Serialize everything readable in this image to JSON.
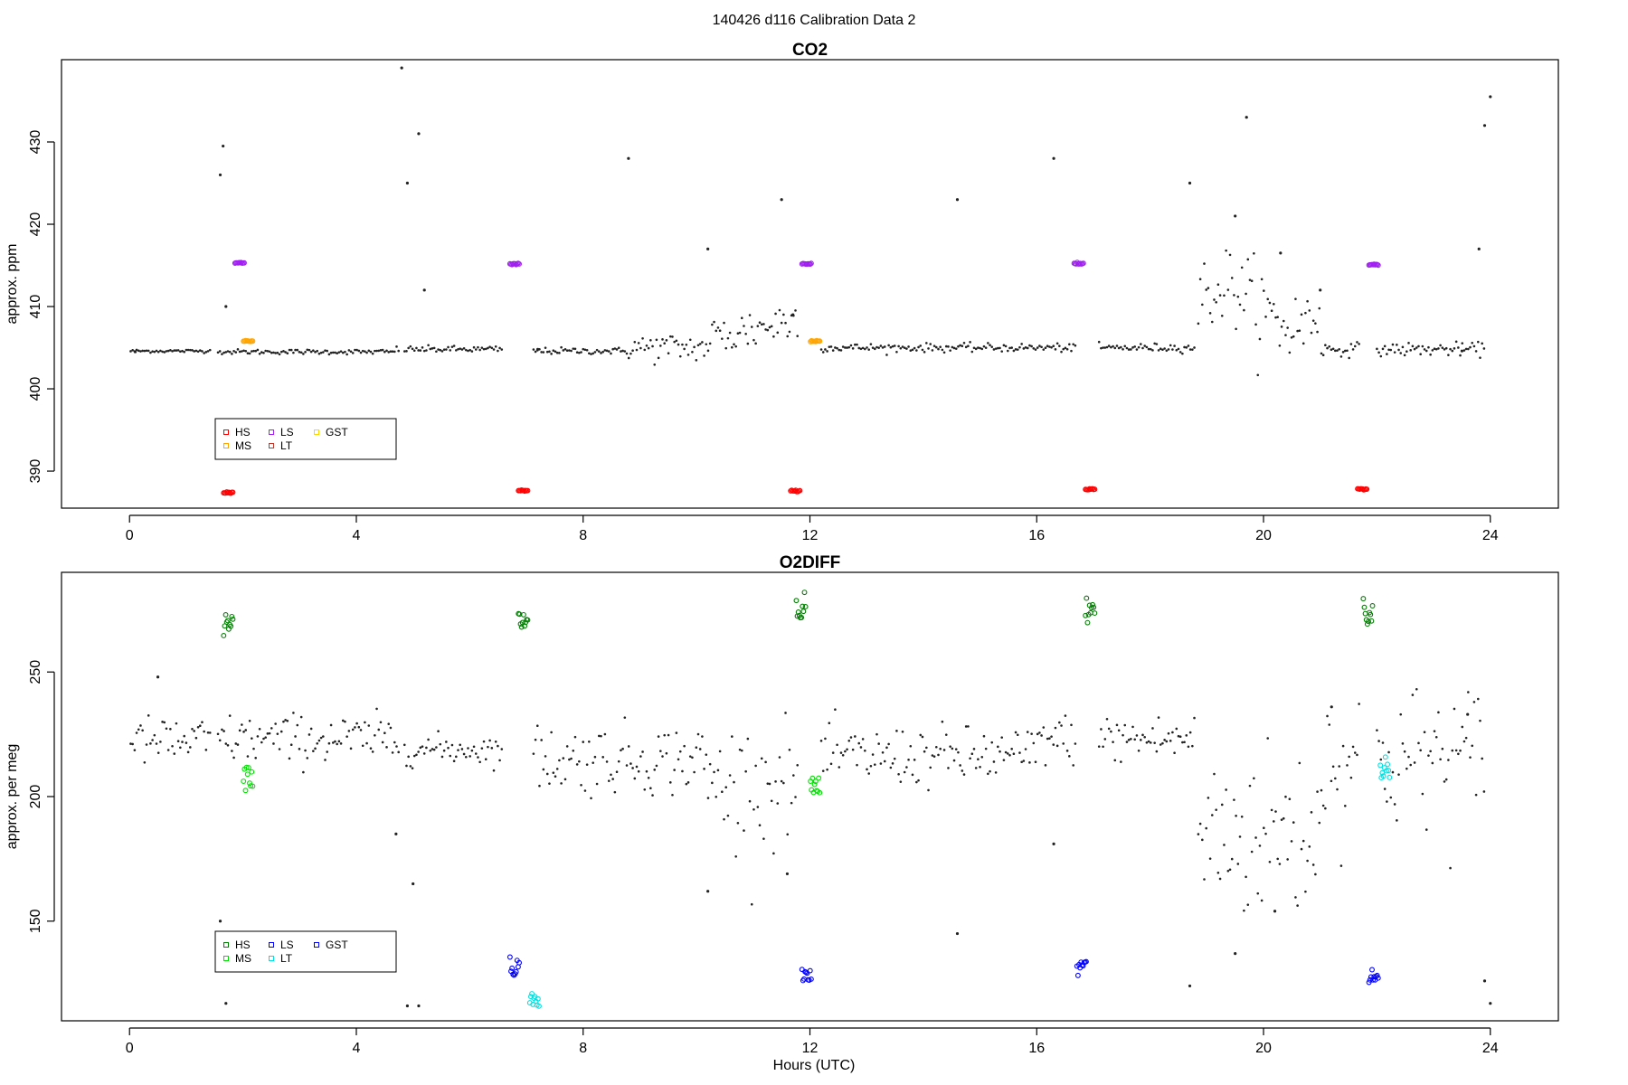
{
  "figure": {
    "title": "140426   d116   Calibration Data 2",
    "xlabel": "Hours (UTC)"
  },
  "chart_data": [
    {
      "type": "scatter",
      "title": "CO2",
      "ylabel": "approx. ppm",
      "xlim": [
        -1.2,
        25.2
      ],
      "ylim": [
        385.5,
        440
      ],
      "xticks": [
        0,
        4,
        8,
        12,
        16,
        20,
        24
      ],
      "yticks": [
        390,
        400,
        410,
        420,
        430
      ],
      "legend": {
        "position": "bottom-left",
        "entries": [
          {
            "name": "HS",
            "color": "#ff0000"
          },
          {
            "name": "MS",
            "color": "#ffa500"
          },
          {
            "name": "LS",
            "color": "#a020f0"
          },
          {
            "name": "LT",
            "color": "#c0392b"
          },
          {
            "name": "GST",
            "color": "#ffd700"
          }
        ]
      },
      "calibrations": [
        {
          "name": "HS",
          "color": "#ff0000",
          "x": [
            1.75,
            6.95,
            11.75,
            16.95,
            21.75
          ],
          "y": [
            387.4,
            387.6,
            387.6,
            387.8,
            387.8
          ]
        },
        {
          "name": "MS",
          "color": "#ffa500",
          "x": [
            2.1,
            12.1
          ],
          "y": [
            405.8,
            405.8
          ]
        },
        {
          "name": "LS",
          "color": "#a020f0",
          "x": [
            1.95,
            6.8,
            11.95,
            16.75,
            21.95
          ],
          "y": [
            415.3,
            415.2,
            415.2,
            415.2,
            415.1
          ]
        }
      ],
      "key_points": {
        "x": [
          0.1,
          1.6,
          1.65,
          1.7,
          4.8,
          4.9,
          5.1,
          5.2,
          7.2,
          8.8,
          10.2,
          11.5,
          11.7,
          14.6,
          16.3,
          18.7,
          19.5,
          19.7,
          20.3,
          21,
          23.5,
          23.8,
          23.9,
          24
        ],
        "y": [
          404.5,
          426,
          429.5,
          410,
          439,
          425,
          431,
          412,
          404.8,
          428,
          417,
          423,
          409,
          423,
          428,
          425,
          421,
          433,
          416.5,
          412,
          404.6,
          417,
          432,
          435.5
        ]
      }
    },
    {
      "type": "scatter",
      "title": "O2DIFF",
      "ylabel": "approx. per meg",
      "xlim": [
        -1.2,
        25.2
      ],
      "ylim": [
        110,
        290
      ],
      "xticks": [
        0,
        4,
        8,
        12,
        16,
        20,
        24
      ],
      "yticks": [
        150,
        200,
        250
      ],
      "legend": {
        "position": "bottom-left",
        "entries": [
          {
            "name": "HS",
            "color": "#008000"
          },
          {
            "name": "MS",
            "color": "#00e000"
          },
          {
            "name": "LS",
            "color": "#0000ff"
          },
          {
            "name": "LT",
            "color": "#00e0e0"
          },
          {
            "name": "GST",
            "color": "#0000ff"
          }
        ]
      },
      "calibrations": [
        {
          "name": "HS",
          "color": "#008000",
          "x": [
            1.75,
            6.95,
            11.85,
            16.95,
            21.85
          ],
          "y": [
            270,
            271,
            276,
            276,
            274
          ]
        },
        {
          "name": "MS",
          "color": "#00e000",
          "x": [
            2.1,
            12.1
          ],
          "y": [
            209,
            205
          ]
        },
        {
          "name": "LS",
          "color": "#0000ff",
          "x": [
            6.8,
            11.95,
            16.8,
            21.95
          ],
          "y": [
            131,
            127,
            131,
            128
          ]
        },
        {
          "name": "LT",
          "color": "#00e0e0",
          "x": [
            7.15,
            22.15
          ],
          "y": [
            118,
            210
          ]
        }
      ],
      "key_points": {
        "x": [
          0.5,
          1.6,
          1.7,
          4.7,
          4.9,
          5.0,
          5.1,
          10.2,
          11.6,
          14.6,
          16.3,
          18.7,
          19.5,
          20.2,
          21.2,
          23.6,
          23.9,
          24
        ],
        "y": [
          248,
          150,
          117,
          185,
          116,
          165,
          116,
          162,
          169,
          145,
          181,
          124,
          137,
          154,
          236,
          233,
          126,
          117
        ]
      }
    }
  ]
}
